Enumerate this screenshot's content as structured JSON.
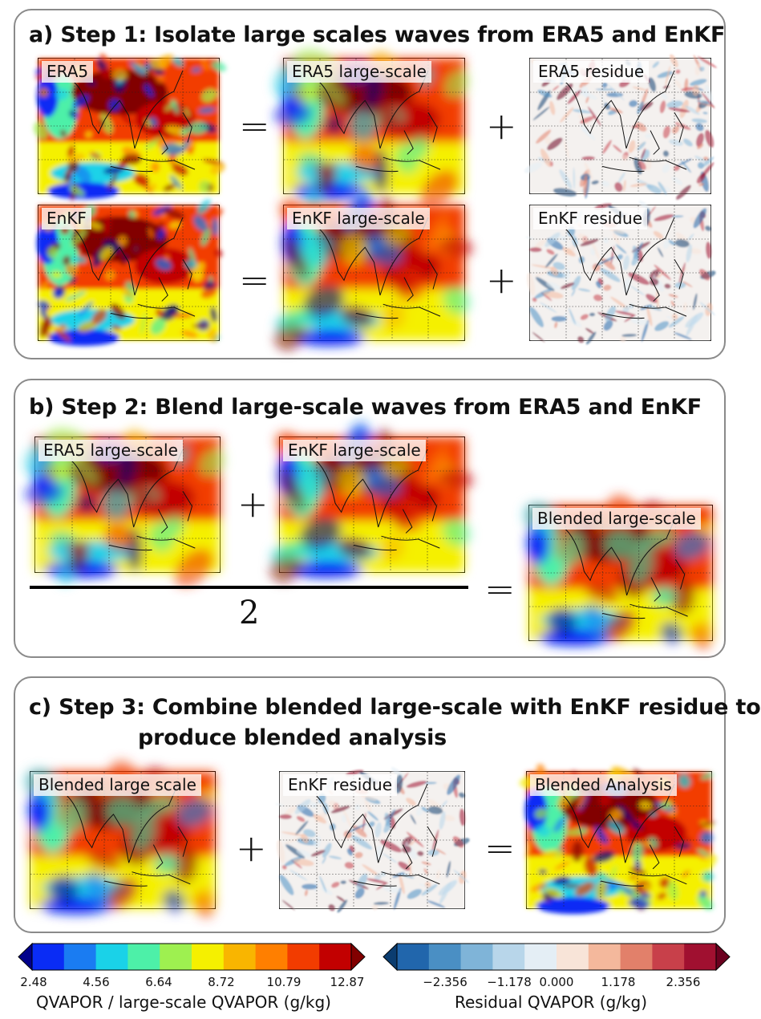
{
  "panels": {
    "a": {
      "title": "a) Step 1: Isolate large scales waves from ERA5 and EnKF",
      "maps": {
        "era5": "ERA5",
        "era5_large": "ERA5 large-scale",
        "era5_residue": "ERA5 residue",
        "enkf": "EnKF",
        "enkf_large": "EnKF large-scale",
        "enkf_residue": "EnKF residue"
      }
    },
    "b": {
      "title": "b) Step 2: Blend large-scale waves from ERA5 and EnKF",
      "maps": {
        "era5_large": "ERA5 large-scale",
        "enkf_large": "EnKF large-scale",
        "blended_large": "Blended large-scale"
      },
      "denominator": "2"
    },
    "c": {
      "title_line1": "c) Step 3: Combine blended large-scale with EnKF residue to",
      "title_line2": "produce blended analysis",
      "maps": {
        "blended_large": "Blended large scale",
        "enkf_residue": "EnKF residue",
        "blended_analysis": "Blended Analysis"
      }
    }
  },
  "operators": {
    "equals": "=",
    "plus": "+"
  },
  "colorbars": {
    "qvapor": {
      "label": "QVAPOR / large-scale QVAPOR (g/kg)",
      "ticks": [
        "2.48",
        "4.56",
        "6.64",
        "8.72",
        "10.79",
        "12.87"
      ],
      "colors": [
        "#00008b",
        "#0a2cf5",
        "#1a7cf2",
        "#1ad2e8",
        "#4df0a8",
        "#9ef050",
        "#f5f000",
        "#f9b500",
        "#ff7f00",
        "#f23c00",
        "#c20000",
        "#820000"
      ]
    },
    "residual": {
      "label": "Residual QVAPOR (g/kg)",
      "ticks": [
        "−2.356",
        "−1.178",
        "0.000",
        "1.178",
        "2.356"
      ],
      "colors": [
        "#0b3d70",
        "#2166ac",
        "#4a8fc4",
        "#7fb4d8",
        "#b8d6ea",
        "#e4eef5",
        "#f8e4d8",
        "#f4b89c",
        "#e2806a",
        "#c8404a",
        "#a01030",
        "#6b001f"
      ]
    }
  }
}
